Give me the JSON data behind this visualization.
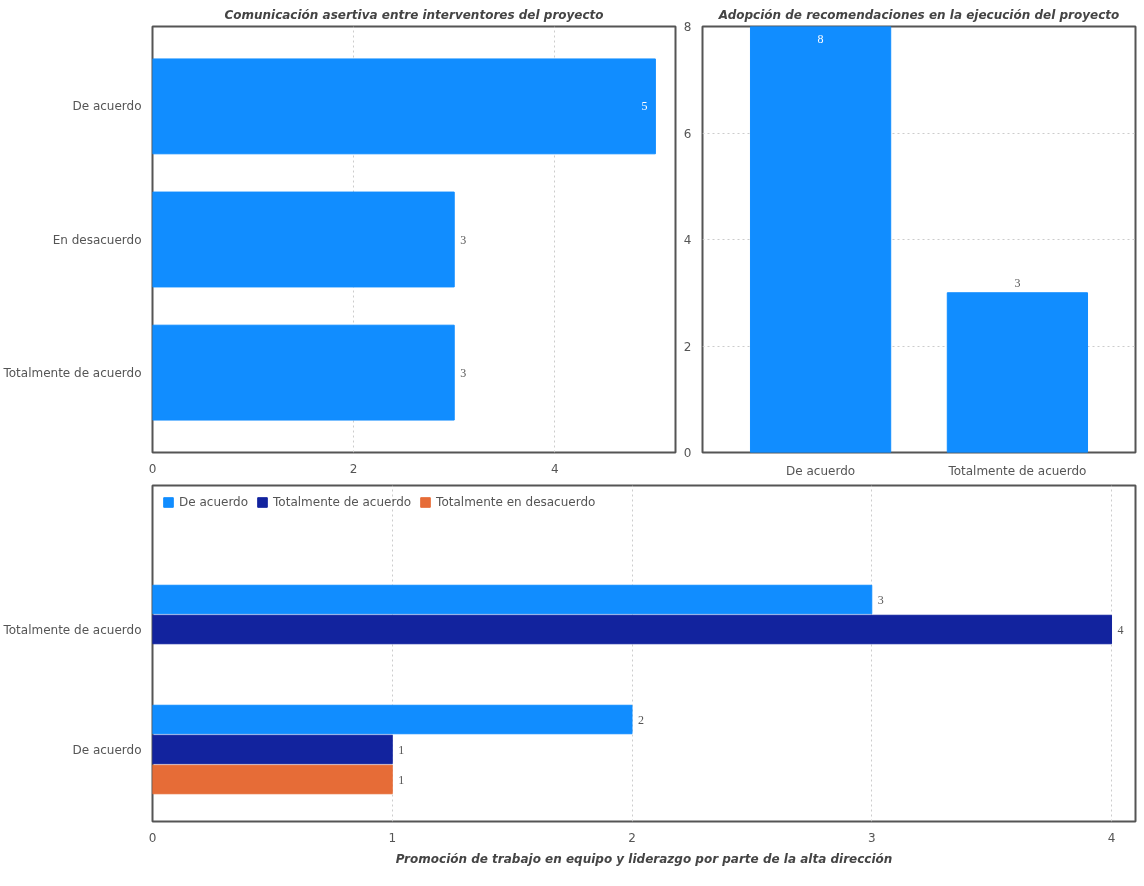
{
  "chart_data": [
    {
      "type": "bar",
      "orientation": "horizontal",
      "title": "Comunicación asertiva entre interventores del proyecto",
      "categories": [
        "De acuerdo",
        "En desacuerdo",
        "Totalmente de acuerdo"
      ],
      "values": [
        5,
        3,
        3
      ],
      "color": "#118dff",
      "xlim": [
        0,
        5.2
      ],
      "xticks": [
        0,
        2,
        4
      ],
      "grid": "x",
      "data_labels": true
    },
    {
      "type": "bar",
      "title": "Adopción de recomendaciones en la ejecución del proyecto",
      "categories": [
        "De acuerdo",
        "Totalmente de acuerdo"
      ],
      "values": [
        8,
        3
      ],
      "color": "#118dff",
      "ylim": [
        0,
        8
      ],
      "yticks": [
        0,
        2,
        4,
        6,
        8
      ],
      "grid": "y",
      "data_labels": true
    },
    {
      "type": "bar",
      "orientation": "horizontal",
      "title": "Promoción de trabajo en equipo y liderazgo por parte de la alta dirección",
      "categories": [
        "Totalmente de acuerdo",
        "De acuerdo"
      ],
      "series": [
        {
          "name": "De acuerdo",
          "color": "#118dff",
          "values": [
            3,
            2
          ]
        },
        {
          "name": "Totalmente de acuerdo",
          "color": "#12239e",
          "values": [
            4,
            1
          ]
        },
        {
          "name": "Totalmente en desacuerdo",
          "color": "#e66c37",
          "values": [
            null,
            1
          ]
        }
      ],
      "xlim": [
        0,
        4.1
      ],
      "xticks": [
        0,
        1,
        2,
        3,
        4
      ],
      "grid": "x",
      "data_labels": true,
      "legend": "top left"
    }
  ]
}
